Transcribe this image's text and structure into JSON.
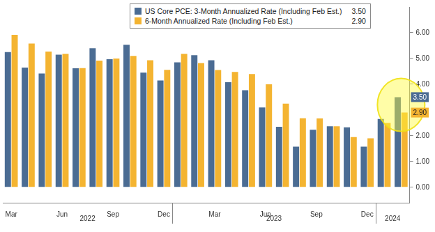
{
  "chart_data": {
    "type": "bar",
    "categories": [
      "Mar",
      null,
      null,
      "Jun",
      null,
      null,
      "Sep",
      null,
      null,
      "Dec",
      null,
      null,
      "Mar",
      null,
      null,
      "Jun",
      null,
      null,
      "Sep",
      null,
      null,
      "Dec",
      null,
      null
    ],
    "x_groups": [
      {
        "label": "2022",
        "from": 0,
        "to": 9
      },
      {
        "label": "2023",
        "from": 10,
        "to": 21
      },
      {
        "label": "2024",
        "from": 22,
        "to": 23
      }
    ],
    "series": [
      {
        "name": "US Core PCE: 3-Month Annualized Rate (Including Feb Est.)",
        "color": "#4b6c93",
        "values": [
          5.25,
          4.65,
          4.42,
          5.15,
          4.62,
          5.4,
          4.97,
          5.53,
          4.45,
          4.15,
          4.85,
          5.13,
          4.93,
          4.08,
          3.77,
          3.1,
          2.35,
          1.58,
          2.23,
          2.37,
          2.33,
          1.58,
          2.65,
          3.5
        ],
        "value_labels": [
          null,
          null,
          null,
          null,
          null,
          null,
          null,
          null,
          null,
          null,
          null,
          null,
          null,
          null,
          null,
          null,
          null,
          null,
          null,
          null,
          null,
          null,
          null,
          "3.50"
        ]
      },
      {
        "name": "6-Month Annualized Rate (Including Feb Est.)",
        "color": "#f4b431",
        "values": [
          5.92,
          5.58,
          5.27,
          5.18,
          4.63,
          4.92,
          5.0,
          5.1,
          4.93,
          4.56,
          5.18,
          4.82,
          4.55,
          4.48,
          4.4,
          4.0,
          3.25,
          2.68,
          2.67,
          2.37,
          1.95,
          1.9,
          2.5,
          2.9
        ],
        "value_labels": [
          null,
          null,
          null,
          null,
          null,
          null,
          null,
          null,
          null,
          null,
          null,
          null,
          null,
          null,
          null,
          null,
          null,
          null,
          null,
          null,
          null,
          null,
          null,
          "2.90"
        ]
      }
    ],
    "ylim": [
      -0.6,
      7.0
    ],
    "yticks": [
      {
        "value": 0,
        "label": "0.00"
      },
      {
        "value": 1,
        "label": "1.00"
      },
      {
        "value": 2,
        "label": "2.00"
      },
      {
        "value": 4,
        "label": "4.00"
      },
      {
        "value": 5,
        "label": "5.00"
      },
      {
        "value": 6,
        "label": "6.00"
      }
    ],
    "grid": false,
    "legend": "top"
  }
}
